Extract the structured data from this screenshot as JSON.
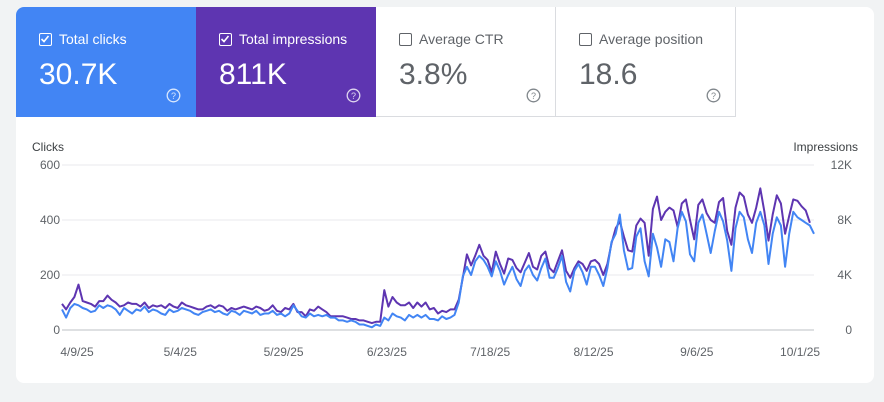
{
  "tiles": [
    {
      "label": "Total clicks",
      "value": "30.7K",
      "checked": true
    },
    {
      "label": "Total impressions",
      "value": "811K",
      "checked": true
    },
    {
      "label": "Average CTR",
      "value": "3.8%",
      "checked": false
    },
    {
      "label": "Average position",
      "value": "18.6",
      "checked": false
    }
  ],
  "colors": {
    "clicks": "#4285f4",
    "impressions": "#5e35b1",
    "grid": "#e8eaed",
    "axis": "#5f6368"
  },
  "icons": {
    "help": "help-circle-icon",
    "check": "checkbox-checked-icon"
  },
  "chart_data": {
    "type": "line",
    "y_left_label": "Clicks",
    "y_right_label": "Impressions",
    "y_left_ticks": [
      "0",
      "200",
      "400",
      "600"
    ],
    "y_right_ticks": [
      "0",
      "4K",
      "8K",
      "12K"
    ],
    "y_left_range": [
      0,
      600
    ],
    "y_right_range": [
      0,
      12000
    ],
    "x_tick_labels": [
      "4/9/25",
      "5/4/25",
      "5/29/25",
      "6/23/25",
      "7/18/25",
      "8/12/25",
      "9/6/25",
      "10/1/25"
    ],
    "x_tick_index": [
      0,
      25,
      50,
      75,
      100,
      125,
      150,
      175
    ],
    "x_range": [
      "4/9/25",
      "10/13/25"
    ],
    "grid": true,
    "series": [
      {
        "name": "Clicks",
        "axis": "left",
        "values": [
          75,
          45,
          80,
          95,
          90,
          80,
          75,
          65,
          70,
          90,
          80,
          90,
          85,
          75,
          55,
          80,
          70,
          60,
          75,
          70,
          85,
          65,
          75,
          70,
          60,
          55,
          75,
          65,
          70,
          80,
          75,
          70,
          60,
          55,
          65,
          70,
          75,
          65,
          70,
          60,
          55,
          70,
          65,
          55,
          70,
          65,
          60,
          70,
          55,
          60,
          60,
          70,
          55,
          60,
          50,
          60,
          90,
          70,
          50,
          45,
          60,
          50,
          55,
          50,
          55,
          45,
          45,
          35,
          35,
          30,
          35,
          30,
          20,
          20,
          15,
          10,
          20,
          15,
          45,
          35,
          60,
          50,
          45,
          35,
          55,
          45,
          55,
          45,
          55,
          40,
          40,
          35,
          50,
          40,
          45,
          55,
          100,
          195,
          230,
          200,
          250,
          270,
          255,
          230,
          195,
          250,
          215,
          165,
          200,
          230,
          185,
          160,
          215,
          235,
          200,
          180,
          225,
          260,
          190,
          190,
          225,
          270,
          175,
          140,
          215,
          240,
          210,
          165,
          230,
          230,
          200,
          160,
          225,
          320,
          350,
          420,
          290,
          220,
          225,
          340,
          370,
          250,
          195,
          350,
          300,
          230,
          330,
          320,
          250,
          370,
          430,
          395,
          275,
          250,
          390,
          420,
          350,
          280,
          360,
          430,
          395,
          325,
          215,
          370,
          430,
          410,
          330,
          280,
          390,
          430,
          380,
          240,
          350,
          410,
          380,
          230,
          350,
          430,
          410,
          400,
          390,
          380,
          350
        ]
      },
      {
        "name": "Impressions",
        "axis": "right",
        "values": [
          1900,
          1500,
          2000,
          2400,
          3300,
          2100,
          2000,
          1900,
          1700,
          2100,
          2100,
          2500,
          2200,
          2000,
          1700,
          1800,
          2000,
          1900,
          1900,
          1700,
          2000,
          1600,
          1800,
          1700,
          1800,
          1600,
          1900,
          1700,
          1600,
          2000,
          1800,
          1700,
          1600,
          1500,
          1500,
          1700,
          1800,
          1600,
          1800,
          1700,
          1400,
          1600,
          1500,
          1600,
          1700,
          1600,
          1500,
          1700,
          1600,
          1400,
          1500,
          1800,
          1400,
          1300,
          1600,
          1500,
          1900,
          1300,
          1300,
          1000,
          1500,
          1400,
          1700,
          1500,
          1300,
          1000,
          1000,
          1000,
          1000,
          900,
          800,
          800,
          700,
          700,
          600,
          500,
          600,
          600,
          2900,
          1700,
          2400,
          2000,
          1800,
          1800,
          2000,
          1600,
          2000,
          1700,
          2000,
          1500,
          1600,
          1200,
          1400,
          1300,
          1500,
          1500,
          2200,
          3800,
          5500,
          4700,
          5400,
          6200,
          5400,
          5100,
          4200,
          5700,
          4800,
          4100,
          5200,
          5100,
          4500,
          4200,
          4900,
          5600,
          4600,
          4400,
          5400,
          5700,
          4500,
          4200,
          5000,
          5800,
          4300,
          3800,
          4500,
          5000,
          4800,
          4300,
          5000,
          5100,
          4800,
          4000,
          4800,
          6300,
          7400,
          7900,
          6800,
          5800,
          5700,
          7600,
          8100,
          7800,
          5400,
          8800,
          9700,
          8000,
          8600,
          8900,
          8700,
          7500,
          9200,
          9500,
          8000,
          6600,
          9100,
          9500,
          8500,
          8000,
          7800,
          9300,
          9600,
          7200,
          6200,
          8900,
          10000,
          9700,
          8400,
          7800,
          8900,
          10300,
          8600,
          6500,
          8400,
          9800,
          9200,
          7000,
          8300,
          9500,
          9400,
          9000,
          8700,
          7800
        ]
      }
    ]
  }
}
